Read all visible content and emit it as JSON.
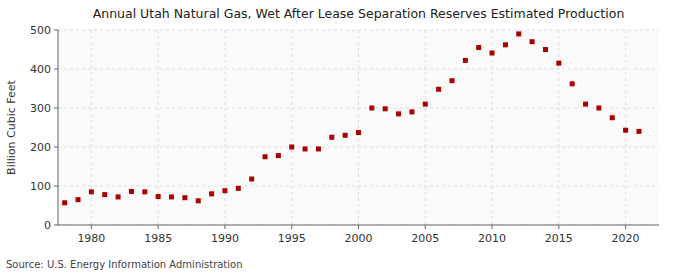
{
  "chart_data": {
    "type": "scatter",
    "title": "Annual Utah Natural Gas, Wet After Lease Separation Reserves Estimated Production",
    "y_label": "Billion Cubic Feet",
    "annotations": [
      "Source: U.S. Energy Information Administration"
    ],
    "x": [
      1978,
      1979,
      1980,
      1981,
      1982,
      1983,
      1984,
      1985,
      1986,
      1987,
      1988,
      1989,
      1990,
      1991,
      1992,
      1993,
      1994,
      1995,
      1996,
      1997,
      1998,
      1999,
      2000,
      2001,
      2002,
      2003,
      2004,
      2005,
      2006,
      2007,
      2008,
      2009,
      2010,
      2011,
      2012,
      2013,
      2014,
      2015,
      2016,
      2017,
      2018,
      2019,
      2020,
      2021
    ],
    "values": [
      57,
      65,
      85,
      78,
      72,
      86,
      85,
      73,
      72,
      70,
      62,
      80,
      88,
      94,
      118,
      175,
      178,
      200,
      195,
      195,
      225,
      230,
      237,
      300,
      298,
      285,
      290,
      310,
      348,
      370,
      422,
      455,
      441,
      462,
      490,
      470,
      450,
      415,
      362,
      310,
      300,
      275,
      243,
      240
    ],
    "color": "#aa0000",
    "marker": "square",
    "xlim": [
      1977.5,
      2022.5
    ],
    "ylim": [
      0,
      500
    ],
    "xticks": [
      1980,
      1985,
      1990,
      1995,
      2000,
      2005,
      2010,
      2015,
      2020
    ],
    "yticks": [
      0,
      100,
      200,
      300,
      400,
      500
    ],
    "grid": true
  }
}
